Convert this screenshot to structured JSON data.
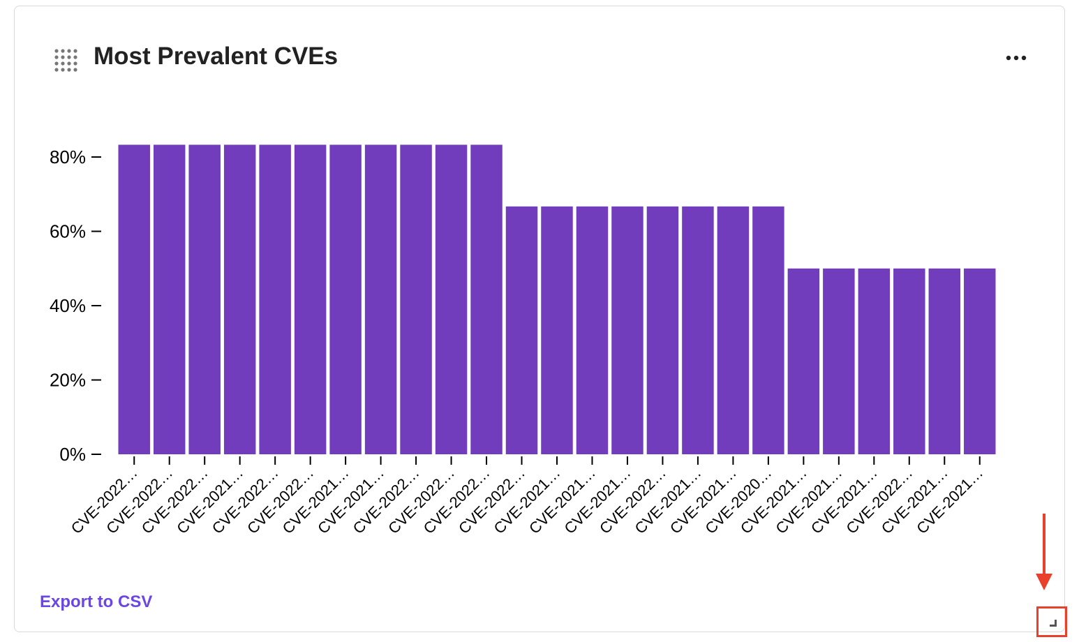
{
  "card": {
    "title": "Most Prevalent CVEs",
    "export_label": "Export to CSV",
    "drag_icon": "drag-grid-icon",
    "more_icon": "ellipsis-icon",
    "resize_icon": "resize-corner-icon"
  },
  "colors": {
    "bar": "#713DBD",
    "export_link": "#6B46E5",
    "annotation": "#E8402A"
  },
  "chart_data": {
    "type": "bar",
    "title": "",
    "xlabel": "",
    "ylabel": "",
    "ylim": [
      0,
      86
    ],
    "yticks": [
      0,
      20,
      40,
      60,
      80
    ],
    "ytick_labels": [
      "0%",
      "20%",
      "40%",
      "60%",
      "80%"
    ],
    "categories": [
      "CVE-2022…",
      "CVE-2022…",
      "CVE-2022…",
      "CVE-2021…",
      "CVE-2022…",
      "CVE-2022…",
      "CVE-2021…",
      "CVE-2021…",
      "CVE-2022…",
      "CVE-2022…",
      "CVE-2022…",
      "CVE-2022…",
      "CVE-2021…",
      "CVE-2021…",
      "CVE-2021…",
      "CVE-2022…",
      "CVE-2021…",
      "CVE-2021…",
      "CVE-2020…",
      "CVE-2021…",
      "CVE-2021…",
      "CVE-2021…",
      "CVE-2022…",
      "CVE-2021…",
      "CVE-2021…"
    ],
    "values": [
      83.3,
      83.3,
      83.3,
      83.3,
      83.3,
      83.3,
      83.3,
      83.3,
      83.3,
      83.3,
      83.3,
      66.7,
      66.7,
      66.7,
      66.7,
      66.7,
      66.7,
      66.7,
      66.7,
      50,
      50,
      50,
      50,
      50,
      50
    ],
    "grid": false,
    "legend": "none"
  }
}
